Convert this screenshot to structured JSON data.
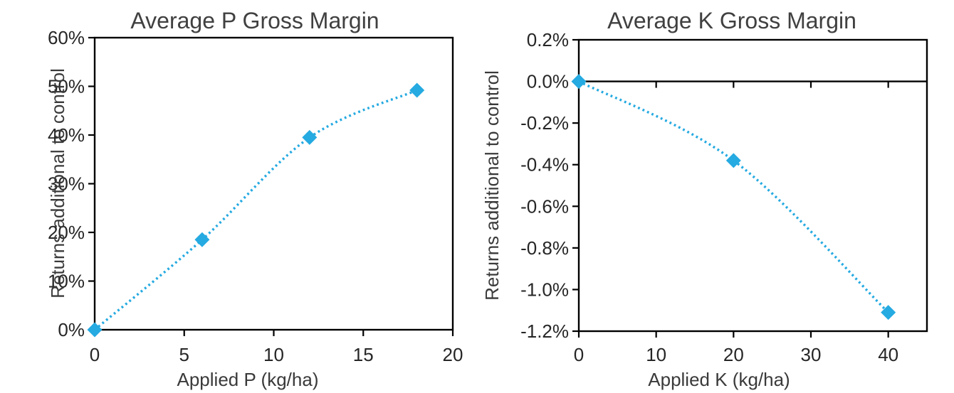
{
  "figure": {
    "background": "#ffffff",
    "accent_color": "#25AAE1",
    "axis_color": "#000000",
    "title_color": "#404040"
  },
  "chart_data": [
    {
      "type": "scatter",
      "title": "Average P Gross Margin",
      "xlabel": "Applied P (kg/ha)",
      "ylabel": "Returns additional to control",
      "series": [
        {
          "name": "Average P Gross Margin",
          "marker": "diamond",
          "color": "#25AAE1",
          "trendline": "dotted smooth curve",
          "points": [
            {
              "x": 0,
              "y_pct": 0
            },
            {
              "x": 6,
              "y_pct": 18.5
            },
            {
              "x": 12,
              "y_pct": 39.5
            },
            {
              "x": 18,
              "y_pct": 49.2
            }
          ]
        }
      ],
      "xlim": [
        0,
        20
      ],
      "ylim_pct": [
        0,
        60
      ],
      "x_ticks": [
        {
          "value": 0,
          "label": "0"
        },
        {
          "value": 5,
          "label": "5"
        },
        {
          "value": 10,
          "label": "10"
        },
        {
          "value": 15,
          "label": "15"
        },
        {
          "value": 20,
          "label": "20"
        }
      ],
      "y_ticks": [
        {
          "value_pct": 0,
          "label": "0%"
        },
        {
          "value_pct": 10,
          "label": "10%"
        },
        {
          "value_pct": 20,
          "label": "20%"
        },
        {
          "value_pct": 30,
          "label": "30%"
        },
        {
          "value_pct": 40,
          "label": "40%"
        },
        {
          "value_pct": 50,
          "label": "50%"
        },
        {
          "value_pct": 60,
          "label": "60%"
        }
      ],
      "zero_axis_line": false,
      "grid": false,
      "legend": false
    },
    {
      "type": "scatter",
      "title": "Average K Gross Margin",
      "xlabel": "Applied K (kg/ha)",
      "ylabel": "Returns additional to control",
      "series": [
        {
          "name": "Average K Gross Margin",
          "marker": "diamond",
          "color": "#25AAE1",
          "trendline": "dotted smooth curve",
          "points": [
            {
              "x": 0,
              "y_pct": 0
            },
            {
              "x": 20,
              "y_pct": -0.38
            },
            {
              "x": 40,
              "y_pct": -1.11
            }
          ]
        }
      ],
      "xlim": [
        0,
        45
      ],
      "ylim_pct": [
        -1.2,
        0.2
      ],
      "x_ticks": [
        {
          "value": 0,
          "label": "0"
        },
        {
          "value": 10,
          "label": "10"
        },
        {
          "value": 20,
          "label": "20"
        },
        {
          "value": 30,
          "label": "30"
        },
        {
          "value": 40,
          "label": "40"
        }
      ],
      "y_ticks": [
        {
          "value_pct": 0.2,
          "label": "0.2%"
        },
        {
          "value_pct": 0.0,
          "label": "0.0%"
        },
        {
          "value_pct": -0.2,
          "label": "-0.2%"
        },
        {
          "value_pct": -0.4,
          "label": "-0.4%"
        },
        {
          "value_pct": -0.6,
          "label": "-0.6%"
        },
        {
          "value_pct": -0.8,
          "label": "-0.8%"
        },
        {
          "value_pct": -1.0,
          "label": "-1.0%"
        },
        {
          "value_pct": -1.2,
          "label": "-1.2%"
        }
      ],
      "zero_axis_line": true,
      "grid": false,
      "legend": false
    }
  ]
}
